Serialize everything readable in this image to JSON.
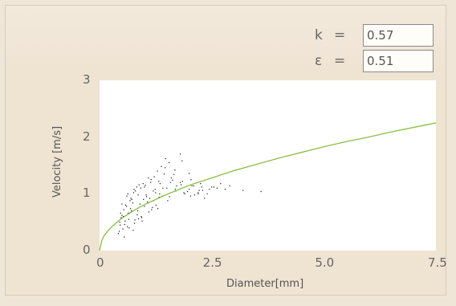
{
  "params": {
    "k_label": "k",
    "k_eq": "=",
    "k_value": "0.57",
    "eps_label": "ε",
    "eps_eq": "=",
    "eps_value": "0.51"
  },
  "chart_data": {
    "type": "scatter",
    "title": "",
    "xlabel": "Diameter[mm]",
    "ylabel": "Velocity [m/s]",
    "xlim": [
      0,
      7.5
    ],
    "ylim": [
      0,
      3
    ],
    "x_ticks": [
      "0",
      "2.5",
      "5.0",
      "7.5"
    ],
    "y_ticks": [
      "0",
      "1",
      "2",
      "3"
    ],
    "curve": {
      "type": "line",
      "color": "#7fba32",
      "x": [
        0,
        0.05,
        0.1,
        0.2,
        0.3,
        0.5,
        0.75,
        1.0,
        1.25,
        1.5,
        2.0,
        2.5,
        3.0,
        3.5,
        4.0,
        4.5,
        5.0,
        5.5,
        6.0,
        6.5,
        7.0,
        7.5
      ],
      "y": [
        0,
        0.18,
        0.26,
        0.36,
        0.44,
        0.57,
        0.7,
        0.81,
        0.9,
        0.99,
        1.15,
        1.28,
        1.41,
        1.52,
        1.63,
        1.73,
        1.83,
        1.92,
        2.0,
        2.09,
        2.17,
        2.25
      ]
    },
    "scatter": {
      "color": "#111111",
      "x": [
        0.42,
        0.46,
        0.5,
        0.55,
        0.6,
        0.65,
        0.7,
        0.75,
        0.8,
        0.85,
        0.9,
        0.95,
        1.0,
        1.05,
        1.1,
        1.15,
        1.2,
        1.25,
        1.3,
        1.35,
        1.4,
        1.5,
        1.6,
        1.7,
        1.8,
        1.9,
        2.0,
        2.1,
        2.2,
        2.3,
        2.5,
        2.7,
        2.9,
        3.2,
        3.6,
        0.45,
        0.52,
        0.58,
        0.64,
        0.72,
        0.78,
        0.86,
        0.93,
        1.02,
        1.08,
        1.16,
        1.24,
        1.32,
        1.44,
        1.56,
        1.68,
        1.82,
        1.96,
        2.12,
        2.28,
        2.45,
        0.48,
        0.54,
        0.62,
        0.68,
        0.76,
        0.84,
        0.92,
        1.0,
        1.12,
        1.22,
        1.34,
        1.46,
        1.58,
        1.72,
        1.88,
        2.04,
        2.22,
        2.4,
        2.62,
        0.44,
        0.53,
        0.61,
        0.69,
        0.77,
        0.87,
        0.97,
        1.07,
        1.18,
        1.29,
        1.41,
        1.55,
        1.69,
        1.85,
        2.03,
        2.25,
        2.55,
        0.5,
        0.56,
        0.63,
        0.71,
        0.79,
        0.88,
        0.98,
        1.09,
        1.2,
        1.33,
        1.47,
        1.63,
        1.8,
        2.0,
        2.2,
        0.47,
        0.57,
        0.66,
        0.74,
        0.83,
        0.94,
        1.04,
        1.14,
        1.26,
        1.38,
        1.52,
        1.66,
        1.84,
        2.06,
        2.34,
        2.8
      ],
      "y": [
        0.3,
        0.45,
        0.62,
        0.24,
        0.78,
        0.55,
        0.92,
        0.36,
        1.05,
        0.7,
        0.82,
        0.52,
        1.12,
        0.95,
        0.68,
        1.25,
        0.88,
        1.02,
        0.74,
        1.18,
        0.96,
        1.1,
        1.28,
        1.05,
        1.2,
        1.0,
        1.08,
        1.14,
        1.02,
        1.06,
        1.12,
        1.18,
        1.14,
        1.06,
        1.04,
        0.5,
        0.38,
        0.8,
        0.66,
        0.9,
        0.48,
        0.98,
        0.6,
        1.15,
        0.84,
        0.72,
        1.08,
        1.22,
        1.35,
        0.95,
        1.42,
        1.16,
        1.04,
        0.98,
        1.12,
        1.08,
        0.58,
        0.72,
        0.42,
        0.88,
        1.02,
        0.63,
        1.1,
        0.78,
        0.92,
        1.3,
        1.0,
        1.46,
        1.2,
        1.14,
        1.02,
        1.25,
        1.06,
        1.0,
        1.1,
        0.34,
        0.6,
        0.96,
        0.74,
        1.08,
        0.56,
        1.18,
        0.86,
        0.76,
        1.4,
        1.1,
        1.55,
        1.08,
        1.22,
        0.96,
        1.18,
        1.12,
        0.82,
        0.46,
        1.0,
        0.7,
        0.54,
        1.16,
        0.9,
        1.28,
        1.05,
        0.94,
        1.62,
        1.24,
        1.7,
        1.36,
        1.0,
        0.66,
        0.52,
        0.4,
        0.84,
        1.12,
        0.58,
        0.98,
        1.2,
        0.8,
        1.48,
        0.88,
        1.34,
        1.58,
        1.14,
        0.92,
        1.08
      ]
    },
    "grid": false,
    "legend": "none"
  }
}
